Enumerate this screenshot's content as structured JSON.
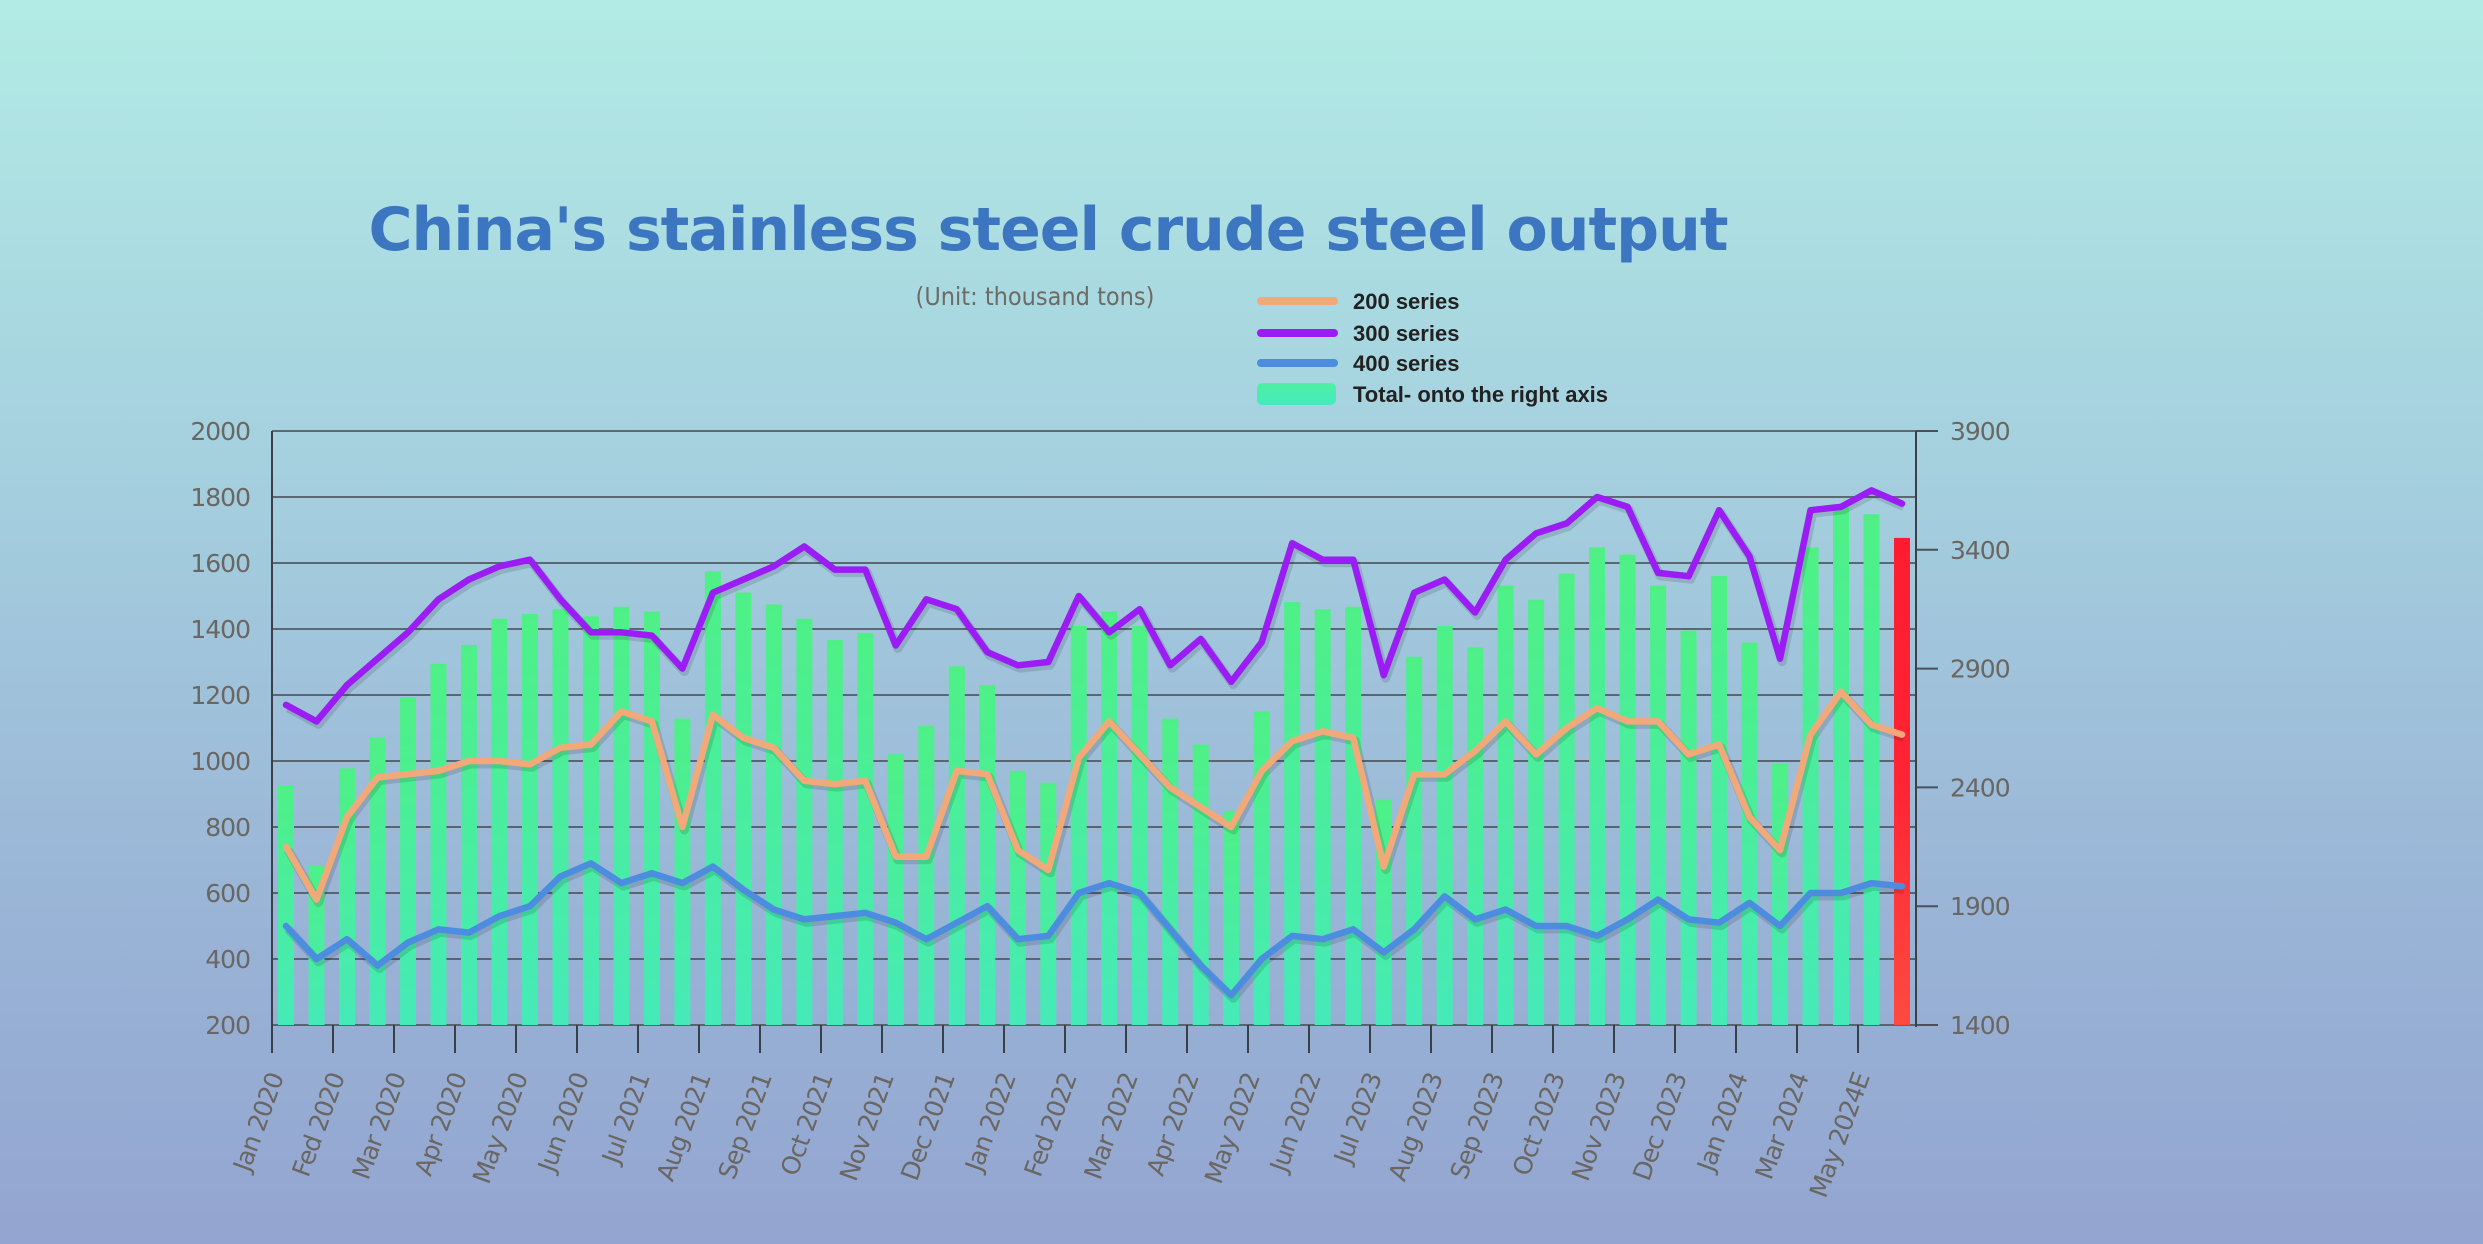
{
  "chart_data": {
    "type": "bar+line",
    "title": "China's stainless steel crude steel output",
    "subtitle": "(Unit: thousand tons)",
    "x_tick_labels": [
      "Jan 2020",
      "Fed 2020",
      "Mar 2020",
      "Apr 2020",
      "May 2020",
      "Jun 2020",
      "Jul 2021",
      "Aug 2021",
      "Sep 2021",
      "Oct 2021",
      "Nov 2021",
      "Dec 2021",
      "Jan 2022",
      "Fed 2022",
      "Mar 2022",
      "Apr 2022",
      "May 2022",
      "Jun 2022",
      "Jul 2023",
      "Aug 2023",
      "Sep 2023",
      "Oct 2023",
      "Nov 2023",
      "Dec 2023",
      "Jan 2024",
      "Mar 2024",
      "May 2024E"
    ],
    "left_axis": {
      "ylim": [
        200,
        2000
      ],
      "ticks": [
        200,
        400,
        600,
        800,
        1000,
        1200,
        1400,
        1600,
        1800,
        2000
      ]
    },
    "right_axis": {
      "ylim": [
        1400,
        3900
      ],
      "ticks": [
        1400,
        1900,
        2400,
        2900,
        3400,
        3900
      ]
    },
    "grid": true,
    "legend_placement": "top-right",
    "legend": [
      {
        "label": "200 series",
        "kind": "line",
        "color": "#f2a97a"
      },
      {
        "label": "300 series",
        "kind": "line",
        "color": "#9b1cf5"
      },
      {
        "label": "400 series",
        "kind": "line",
        "color": "#4d8de0"
      },
      {
        "label": "Total- onto the right axis",
        "kind": "bar",
        "color": "#48f0b0"
      }
    ],
    "series": [
      {
        "name": "200 series",
        "axis": "left",
        "type": "line",
        "color": "#f2a97a",
        "values": [
          740,
          580,
          830,
          950,
          960,
          970,
          1000,
          1000,
          990,
          1040,
          1050,
          1150,
          1120,
          800,
          1140,
          1070,
          1040,
          940,
          930,
          940,
          710,
          710,
          970,
          960,
          730,
          670,
          1010,
          1120,
          1020,
          920,
          860,
          800,
          970,
          1060,
          1090,
          1070,
          680,
          960,
          960,
          1030,
          1120,
          1020,
          1100,
          1160,
          1120,
          1120,
          1020,
          1050,
          830,
          730,
          1080,
          1210,
          1110,
          1080
        ]
      },
      {
        "name": "300 series",
        "axis": "left",
        "type": "line",
        "color": "#9b1cf5",
        "values": [
          1170,
          1120,
          1230,
          1310,
          1390,
          1490,
          1550,
          1590,
          1610,
          1490,
          1390,
          1390,
          1380,
          1280,
          1510,
          1550,
          1590,
          1650,
          1580,
          1580,
          1350,
          1490,
          1460,
          1330,
          1290,
          1300,
          1500,
          1390,
          1460,
          1290,
          1370,
          1240,
          1360,
          1660,
          1610,
          1610,
          1260,
          1510,
          1550,
          1450,
          1610,
          1690,
          1720,
          1800,
          1770,
          1570,
          1560,
          1760,
          1620,
          1310,
          1760,
          1770,
          1820,
          1780
        ]
      },
      {
        "name": "400 series",
        "axis": "left",
        "type": "line",
        "color": "#4d8de0",
        "values": [
          500,
          400,
          460,
          380,
          450,
          490,
          480,
          530,
          560,
          650,
          690,
          630,
          660,
          630,
          680,
          610,
          550,
          520,
          530,
          540,
          510,
          460,
          510,
          560,
          460,
          470,
          600,
          630,
          600,
          490,
          380,
          290,
          400,
          470,
          460,
          490,
          420,
          490,
          590,
          520,
          550,
          500,
          500,
          470,
          520,
          580,
          520,
          510,
          570,
          500,
          600,
          600,
          630,
          620
        ]
      },
      {
        "name": "Total- onto the right axis",
        "axis": "right",
        "type": "bar",
        "color": "#48f0b0",
        "last_bar_color": "#ff2434",
        "values": [
          2410,
          2070,
          2480,
          2610,
          2780,
          2920,
          3000,
          3110,
          3130,
          3150,
          3120,
          3160,
          3140,
          2690,
          3310,
          3220,
          3170,
          3110,
          3020,
          3050,
          2540,
          2660,
          2910,
          2830,
          2470,
          2420,
          3080,
          3140,
          3080,
          2690,
          2580,
          2300,
          2720,
          3180,
          3150,
          3160,
          2350,
          2950,
          3080,
          2990,
          3250,
          3190,
          3300,
          3410,
          3380,
          3250,
          3060,
          3290,
          3010,
          2500,
          3410,
          3580,
          3550,
          3450
        ]
      }
    ]
  }
}
